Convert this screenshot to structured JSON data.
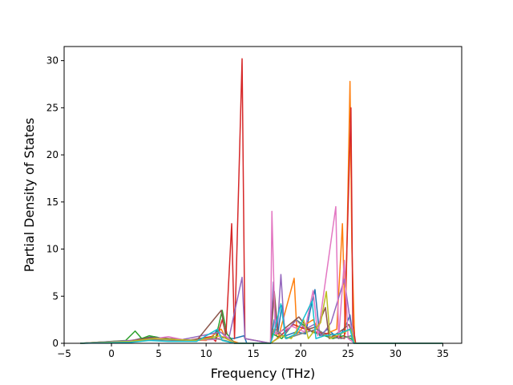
{
  "chart_data": {
    "type": "line",
    "title": "",
    "xlabel": "Frequency (THz)",
    "ylabel": "Partial Density of States",
    "xlim": [
      -5,
      37
    ],
    "ylim": [
      0,
      31.5
    ],
    "xticks": [
      -5,
      0,
      5,
      10,
      15,
      20,
      25,
      30,
      35
    ],
    "yticks": [
      0,
      5,
      10,
      15,
      20,
      25,
      30
    ],
    "grid": false,
    "legend": "none",
    "series": [
      {
        "color": "#1f77b4",
        "points": [
          [
            -3.3,
            0
          ],
          [
            1.5,
            0.1
          ],
          [
            3,
            0.5
          ],
          [
            4.5,
            0.7
          ],
          [
            5.5,
            0.5
          ],
          [
            8,
            0.3
          ],
          [
            10.5,
            0.4
          ],
          [
            11.2,
            1.5
          ],
          [
            11.6,
            0.6
          ],
          [
            12.9,
            0.5
          ],
          [
            14,
            0.8
          ],
          [
            14.3,
            0
          ],
          [
            16.8,
            0
          ],
          [
            17.2,
            2.5
          ],
          [
            17.6,
            1.2
          ],
          [
            18,
            4
          ],
          [
            18.4,
            0.8
          ],
          [
            19.5,
            1.2
          ],
          [
            20.5,
            1
          ],
          [
            21,
            3.5
          ],
          [
            21.5,
            5.7
          ],
          [
            22,
            0.8
          ],
          [
            22.8,
            1.5
          ],
          [
            24,
            0.5
          ],
          [
            24.8,
            2
          ],
          [
            25.2,
            3
          ],
          [
            25.6,
            0
          ],
          [
            35,
            0
          ]
        ]
      },
      {
        "color": "#ff7f0e",
        "points": [
          [
            -3.3,
            0
          ],
          [
            2,
            0.3
          ],
          [
            4,
            0.6
          ],
          [
            6,
            0.4
          ],
          [
            10,
            0.3
          ],
          [
            11.6,
            1.5
          ],
          [
            12.1,
            0.5
          ],
          [
            13.5,
            0
          ],
          [
            16.8,
            0
          ],
          [
            17.2,
            1.5
          ],
          [
            17.6,
            0.5
          ],
          [
            19.3,
            6.9
          ],
          [
            19.6,
            1
          ],
          [
            20.5,
            2
          ],
          [
            21.3,
            2.5
          ],
          [
            22.2,
            0.8
          ],
          [
            23.8,
            1.5
          ],
          [
            24.4,
            12.7
          ],
          [
            24.7,
            1
          ],
          [
            25.2,
            27.8
          ],
          [
            25.4,
            10
          ],
          [
            25.7,
            0
          ],
          [
            35,
            0
          ]
        ]
      },
      {
        "color": "#2ca02c",
        "points": [
          [
            -3.3,
            0
          ],
          [
            1.5,
            0.3
          ],
          [
            2.5,
            1.3
          ],
          [
            3.2,
            0.5
          ],
          [
            4,
            0.8
          ],
          [
            5,
            0.6
          ],
          [
            7,
            0.4
          ],
          [
            9,
            0.3
          ],
          [
            11,
            0.5
          ],
          [
            11.7,
            3.5
          ],
          [
            12.2,
            1
          ],
          [
            13,
            0
          ],
          [
            16.8,
            0
          ],
          [
            17,
            1
          ],
          [
            18,
            0.5
          ],
          [
            19.5,
            2.5
          ],
          [
            20.5,
            1.8
          ],
          [
            21.2,
            1.2
          ],
          [
            22.5,
            0.8
          ],
          [
            23.4,
            0.5
          ],
          [
            24.5,
            0.8
          ],
          [
            25.3,
            0.5
          ],
          [
            25.8,
            0
          ],
          [
            35,
            0
          ]
        ]
      },
      {
        "color": "#d62728",
        "points": [
          [
            -3.3,
            0
          ],
          [
            2,
            0.2
          ],
          [
            4,
            0.5
          ],
          [
            6,
            0.4
          ],
          [
            8,
            0.3
          ],
          [
            10.5,
            0.7
          ],
          [
            11,
            0.2
          ],
          [
            11.7,
            2.5
          ],
          [
            12.1,
            1
          ],
          [
            12.7,
            12.7
          ],
          [
            13,
            0.5
          ],
          [
            13.8,
            30.2
          ],
          [
            14.1,
            0.5
          ],
          [
            16.8,
            0
          ],
          [
            17.5,
            0.5
          ],
          [
            19.2,
            2
          ],
          [
            20.5,
            1.5
          ],
          [
            21.5,
            1.2
          ],
          [
            23,
            1
          ],
          [
            24.6,
            0.5
          ],
          [
            25.3,
            25
          ],
          [
            25.5,
            2
          ],
          [
            25.8,
            0
          ],
          [
            35,
            0
          ]
        ]
      },
      {
        "color": "#9467bd",
        "points": [
          [
            -3.3,
            0
          ],
          [
            2,
            0.3
          ],
          [
            4.5,
            0.6
          ],
          [
            7,
            0.3
          ],
          [
            11.5,
            1.2
          ],
          [
            12.4,
            0.5
          ],
          [
            13.8,
            7
          ],
          [
            14.1,
            0.5
          ],
          [
            16.8,
            0
          ],
          [
            17.1,
            6.5
          ],
          [
            17.5,
            1
          ],
          [
            17.9,
            7.3
          ],
          [
            18.3,
            1
          ],
          [
            19.5,
            2.5
          ],
          [
            20.5,
            1.5
          ],
          [
            21.4,
            2
          ],
          [
            22.2,
            0.8
          ],
          [
            23.2,
            2.2
          ],
          [
            24.6,
            6.8
          ],
          [
            25.2,
            2.5
          ],
          [
            25.7,
            0
          ],
          [
            35,
            0
          ]
        ]
      },
      {
        "color": "#8c564b",
        "points": [
          [
            -3.3,
            0
          ],
          [
            2,
            0.2
          ],
          [
            4,
            0.6
          ],
          [
            6,
            0.5
          ],
          [
            9,
            0.3
          ],
          [
            11.6,
            3.5
          ],
          [
            12.1,
            0.6
          ],
          [
            13,
            0
          ],
          [
            16.8,
            0
          ],
          [
            17.2,
            5.5
          ],
          [
            17.6,
            1
          ],
          [
            19.8,
            2.8
          ],
          [
            20.8,
            1.5
          ],
          [
            21.8,
            1.8
          ],
          [
            22.6,
            3.8
          ],
          [
            23,
            0.5
          ],
          [
            24.5,
            1.5
          ],
          [
            25.1,
            2
          ],
          [
            25.7,
            0
          ],
          [
            35,
            0
          ]
        ]
      },
      {
        "color": "#e377c2",
        "points": [
          [
            -3.3,
            0
          ],
          [
            2,
            0.2
          ],
          [
            4,
            0.4
          ],
          [
            6,
            0.7
          ],
          [
            8,
            0.3
          ],
          [
            11,
            0.4
          ],
          [
            12,
            0.8
          ],
          [
            13,
            0
          ],
          [
            16.8,
            0
          ],
          [
            16.95,
            14
          ],
          [
            17.3,
            1
          ],
          [
            19.1,
            1.8
          ],
          [
            20.4,
            1.2
          ],
          [
            21.3,
            5.6
          ],
          [
            21.8,
            0.8
          ],
          [
            23.7,
            14.5
          ],
          [
            24,
            0.5
          ],
          [
            24.6,
            8.8
          ],
          [
            25,
            0.5
          ],
          [
            25.7,
            0
          ],
          [
            35,
            0
          ]
        ]
      },
      {
        "color": "#7f7f7f",
        "points": [
          [
            -3.3,
            0
          ],
          [
            2,
            0.2
          ],
          [
            4,
            0.4
          ],
          [
            7,
            0.3
          ],
          [
            11,
            0.5
          ],
          [
            12,
            0.3
          ],
          [
            13,
            0
          ],
          [
            16.8,
            0
          ],
          [
            17.3,
            1.5
          ],
          [
            18.5,
            0.5
          ],
          [
            20,
            1
          ],
          [
            21.7,
            1.5
          ],
          [
            23,
            0.7
          ],
          [
            24.3,
            0.5
          ],
          [
            25.3,
            0.8
          ],
          [
            25.7,
            0
          ],
          [
            35,
            0
          ]
        ]
      },
      {
        "color": "#bcbd22",
        "points": [
          [
            -3.3,
            0
          ],
          [
            2,
            0.2
          ],
          [
            4.5,
            0.5
          ],
          [
            6.5,
            0.4
          ],
          [
            9,
            0.3
          ],
          [
            11.5,
            0.8
          ],
          [
            12.5,
            0.3
          ],
          [
            13,
            0
          ],
          [
            16.8,
            0
          ],
          [
            18,
            0.8
          ],
          [
            19,
            0.5
          ],
          [
            20.3,
            2.5
          ],
          [
            20.8,
            0.5
          ],
          [
            22.1,
            2.2
          ],
          [
            22.7,
            5.5
          ],
          [
            23.1,
            0.5
          ],
          [
            24.2,
            1
          ],
          [
            25.3,
            1.5
          ],
          [
            25.7,
            0
          ],
          [
            35,
            0
          ]
        ]
      },
      {
        "color": "#17becf",
        "points": [
          [
            -3.3,
            0
          ],
          [
            2,
            0.1
          ],
          [
            4,
            0.3
          ],
          [
            6,
            0.2
          ],
          [
            9,
            0.2
          ],
          [
            11.2,
            1.5
          ],
          [
            11.7,
            0.3
          ],
          [
            13,
            0
          ],
          [
            16.8,
            0
          ],
          [
            17.2,
            1.2
          ],
          [
            17.9,
            4.2
          ],
          [
            18.4,
            0.5
          ],
          [
            19.5,
            1
          ],
          [
            21.2,
            4.5
          ],
          [
            21.6,
            0.5
          ],
          [
            22.5,
            0.8
          ],
          [
            24,
            1
          ],
          [
            25.2,
            1.5
          ],
          [
            25.6,
            0
          ],
          [
            35,
            0
          ]
        ]
      }
    ]
  }
}
